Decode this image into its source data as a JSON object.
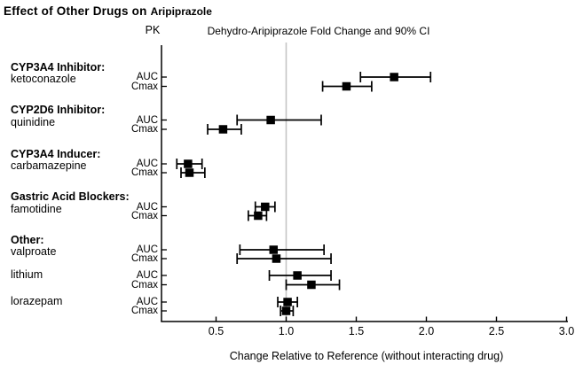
{
  "title": {
    "prefix": "Effect of Other Drugs on",
    "drug": "Aripiprazole"
  },
  "chart_data": {
    "type": "scatter",
    "subtype": "forest-plot-with-90pct-CI",
    "pk_column_header": "PK",
    "plot_header": "Dehydro-Aripiprazole Fold Change and 90% CI",
    "xlabel": "Change Relative to Reference (without interacting drug)",
    "x_tick_labels": [
      "0.5",
      "1.0",
      "1.5",
      "2.0",
      "2.5",
      "3.0"
    ],
    "x_tick_values": [
      0.5,
      1.0,
      1.5,
      2.0,
      2.5,
      3.0
    ],
    "xlim": [
      0.11,
      3.0
    ],
    "reference_value": 1.0,
    "grid": "off",
    "groups": [
      {
        "group_label": "CYP3A4 Inhibitor:",
        "drug": "ketoconazole",
        "rows": [
          {
            "pk": "AUC",
            "value": 1.77,
            "ci90": [
              1.53,
              2.03
            ]
          },
          {
            "pk": "Cmax",
            "value": 1.43,
            "ci90": [
              1.26,
              1.61
            ]
          }
        ]
      },
      {
        "group_label": "CYP2D6 Inhibitor:",
        "drug": "quinidine",
        "rows": [
          {
            "pk": "AUC",
            "value": 0.89,
            "ci90": [
              0.65,
              1.25
            ]
          },
          {
            "pk": "Cmax",
            "value": 0.55,
            "ci90": [
              0.44,
              0.68
            ]
          }
        ]
      },
      {
        "group_label": "CYP3A4 Inducer:",
        "drug": "carbamazepine",
        "rows": [
          {
            "pk": "AUC",
            "value": 0.3,
            "ci90": [
              0.22,
              0.4
            ]
          },
          {
            "pk": "Cmax",
            "value": 0.31,
            "ci90": [
              0.25,
              0.42
            ]
          }
        ]
      },
      {
        "group_label": "Gastric Acid Blockers:",
        "drug": "famotidine",
        "rows": [
          {
            "pk": "AUC",
            "value": 0.85,
            "ci90": [
              0.78,
              0.92
            ]
          },
          {
            "pk": "Cmax",
            "value": 0.8,
            "ci90": [
              0.73,
              0.86
            ]
          }
        ]
      },
      {
        "group_label": "Other:",
        "drug": "valproate",
        "rows": [
          {
            "pk": "AUC",
            "value": 0.91,
            "ci90": [
              0.67,
              1.27
            ]
          },
          {
            "pk": "Cmax",
            "value": 0.93,
            "ci90": [
              0.65,
              1.32
            ]
          }
        ]
      },
      {
        "group_label": "",
        "drug": "lithium",
        "rows": [
          {
            "pk": "AUC",
            "value": 1.08,
            "ci90": [
              0.88,
              1.32
            ]
          },
          {
            "pk": "Cmax",
            "value": 1.18,
            "ci90": [
              1.0,
              1.38
            ]
          }
        ]
      },
      {
        "group_label": "",
        "drug": "lorazepam",
        "rows": [
          {
            "pk": "AUC",
            "value": 1.01,
            "ci90": [
              0.94,
              1.08
            ]
          },
          {
            "pk": "Cmax",
            "value": 1.0,
            "ci90": [
              0.96,
              1.05
            ]
          }
        ]
      }
    ],
    "colors": {
      "marker": "#000000",
      "axis": "#000000",
      "reference_line": "#c4c4c4",
      "background": "#ffffff"
    }
  }
}
